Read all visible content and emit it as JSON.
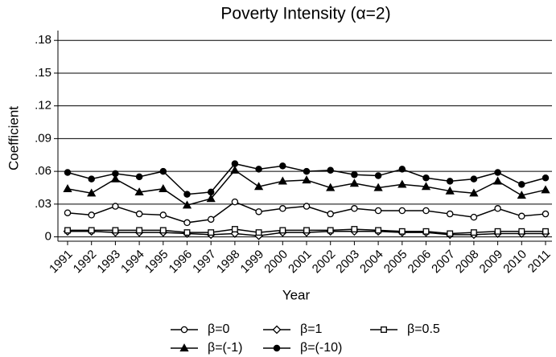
{
  "chart_data": {
    "type": "line",
    "title": "Poverty Intensity (α=2)",
    "x_label": "Year",
    "y_label": "Coefficient",
    "categories": [
      "1991",
      "1992",
      "1993",
      "1994",
      "1995",
      "1996",
      "1997",
      "1998",
      "1999",
      "2000",
      "2001",
      "2002",
      "2003",
      "2004",
      "2005",
      "2006",
      "2007",
      "2008",
      "2009",
      "2010",
      "2011"
    ],
    "ylim": [
      -0.004,
      0.189
    ],
    "yticks": [
      0,
      {
        "value": 0.03,
        "label": ".03"
      },
      {
        "value": 0.06,
        "label": ".06"
      },
      {
        "value": 0.09,
        "label": ".09"
      },
      {
        "value": 0.12,
        "label": ".12"
      },
      {
        "value": 0.15,
        "label": ".15"
      },
      {
        "value": 0.18,
        "label": ".18"
      }
    ],
    "grid": true,
    "legend_position": "bottom",
    "series": [
      {
        "name": "β=0",
        "color": "#000000",
        "marker": "circle-open",
        "values": [
          0.022,
          0.02,
          0.028,
          0.021,
          0.02,
          0.013,
          0.016,
          0.032,
          0.023,
          0.026,
          0.028,
          0.021,
          0.026,
          0.024,
          0.024,
          0.024,
          0.021,
          0.018,
          0.026,
          0.019,
          0.021
        ]
      },
      {
        "name": "β=1",
        "color": "#000000",
        "marker": "diamond-open",
        "values": [
          0.005,
          0.005,
          0.004,
          0.004,
          0.004,
          0.003,
          0.002,
          0.003,
          0.001,
          0.004,
          0.004,
          0.005,
          0.005,
          0.005,
          0.004,
          0.004,
          0.002,
          0.002,
          0.003,
          0.003,
          0.003
        ]
      },
      {
        "name": "β=0.5",
        "color": "#000000",
        "marker": "square-open",
        "values": [
          0.006,
          0.006,
          0.006,
          0.006,
          0.006,
          0.004,
          0.004,
          0.007,
          0.004,
          0.006,
          0.006,
          0.006,
          0.007,
          0.006,
          0.005,
          0.005,
          0.003,
          0.004,
          0.005,
          0.005,
          0.005
        ]
      },
      {
        "name": "β=(-1)",
        "color": "#000000",
        "marker": "triangle",
        "values": [
          0.044,
          0.04,
          0.053,
          0.041,
          0.044,
          0.029,
          0.035,
          0.061,
          0.046,
          0.051,
          0.052,
          0.045,
          0.049,
          0.045,
          0.048,
          0.046,
          0.042,
          0.04,
          0.051,
          0.038,
          0.043
        ]
      },
      {
        "name": "β=(-10)",
        "color": "#000000",
        "marker": "circle",
        "values": [
          0.059,
          0.053,
          0.058,
          0.055,
          0.06,
          0.039,
          0.041,
          0.067,
          0.062,
          0.065,
          0.06,
          0.061,
          0.057,
          0.056,
          0.062,
          0.054,
          0.051,
          0.053,
          0.059,
          0.048,
          0.054
        ]
      }
    ]
  }
}
